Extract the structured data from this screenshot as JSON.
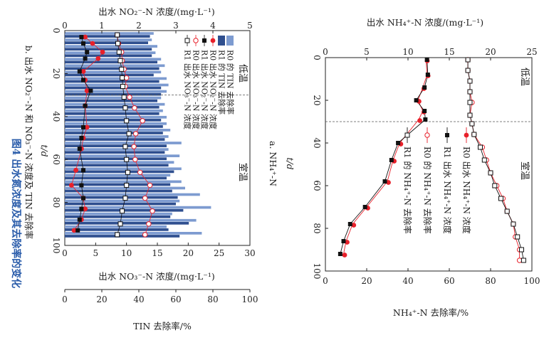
{
  "figure": {
    "caption": "图4  出水氮浓度及其去除率的变化",
    "caption_color": "#2a5caa"
  },
  "chart_data": [
    {
      "type": "bar+line+scatter",
      "subtitle": "b. 出水 NO₂⁻-N 和 NO₃⁻-N 浓度及 TIN 去除率",
      "t_label": "t/d",
      "no2_axis_label": "出水 NO₂⁻-N 浓度/(mg·L⁻¹)",
      "no3_axis_label": "出水 NO₃⁻-N 浓度/(mg·L⁻¹)",
      "tin_axis_label": "TIN 去除率/%",
      "t_range": [
        0,
        100
      ],
      "t_ticks": [
        0,
        20,
        40,
        60,
        80,
        100
      ],
      "no2_range": [
        0,
        5
      ],
      "no2_ticks": [
        0,
        1,
        2,
        3,
        4,
        5
      ],
      "no3_range": [
        0,
        30
      ],
      "no3_ticks": [
        0,
        5,
        10,
        15,
        20,
        25,
        30
      ],
      "tin_range": [
        0,
        100
      ],
      "tin_ticks": [
        0,
        20,
        40,
        60,
        80,
        100
      ],
      "divider_t": 30,
      "phase_labels": [
        "低温",
        "室温"
      ],
      "legend": [
        "R0 的 TIN 去除率",
        "R1 的 TIN 去除率",
        "R0 出水 NO₂⁻-N 浓度",
        "R1 出水 NO₂⁻-N 浓度",
        "R0 出水 NO₃⁻-N 浓度",
        "R1 出水 NO₃⁻-N 浓度"
      ],
      "t": [
        2,
        5,
        8,
        11,
        14,
        17,
        20,
        23,
        26,
        29,
        32,
        35,
        38,
        41,
        44,
        47,
        50,
        53,
        56,
        59,
        62,
        65,
        68,
        71,
        74,
        77,
        80,
        83,
        86,
        89,
        92,
        95
      ],
      "tin_R0": [
        48,
        47,
        50,
        49,
        52,
        54,
        52,
        55,
        56,
        55,
        52,
        54,
        53,
        55,
        55,
        57,
        56,
        63,
        56,
        62,
        59,
        63,
        57,
        63,
        65,
        73,
        62,
        79,
        58,
        71,
        55,
        74
      ],
      "tin_R1": [
        46,
        45,
        47,
        47,
        50,
        51,
        48,
        51,
        52,
        52,
        50,
        51,
        51,
        52,
        53,
        53,
        54,
        55,
        54,
        55,
        56,
        59,
        55,
        57,
        58,
        61,
        60,
        64,
        57,
        67,
        56,
        62
      ],
      "no2_R0_t": [
        3,
        6,
        10,
        13,
        19,
        23,
        28,
        35,
        45,
        50,
        55,
        65,
        72,
        78,
        83,
        88,
        93
      ],
      "no2_R0": [
        0.55,
        0.75,
        1.02,
        0.9,
        0.5,
        0.55,
        0.6,
        0.55,
        0.6,
        0.5,
        0.45,
        0.3,
        0.18,
        0.5,
        0.55,
        0.45,
        0.25
      ],
      "no2_R1_t": [
        3,
        6,
        10,
        13,
        19,
        23,
        28,
        35,
        45,
        50,
        55,
        65,
        72,
        78,
        83,
        88,
        93
      ],
      "no2_R1": [
        0.45,
        0.5,
        0.6,
        0.55,
        0.4,
        0.5,
        0.7,
        0.55,
        0.5,
        0.45,
        0.4,
        0.5,
        0.45,
        0.5,
        0.45,
        0.4,
        0.35
      ],
      "no3_R0_t": [
        2,
        6,
        10,
        14,
        18,
        22,
        26,
        31,
        36,
        42,
        48,
        54,
        60,
        66,
        72,
        78,
        84,
        90,
        95
      ],
      "no3_R0": [
        8.5,
        8.7,
        9.2,
        9.3,
        9.6,
        10.0,
        9.8,
        10.5,
        11.3,
        12.6,
        11.5,
        11.2,
        11.4,
        12.2,
        13.8,
        13.0,
        14.2,
        13.6,
        13.0
      ],
      "no3_R1_t": [
        2,
        6,
        10,
        14,
        18,
        22,
        26,
        31,
        36,
        42,
        48,
        54,
        60,
        66,
        72,
        78,
        84,
        90,
        95
      ],
      "no3_R1": [
        8.5,
        8.6,
        8.8,
        9.0,
        9.2,
        9.3,
        9.4,
        9.6,
        9.8,
        10.0,
        10.4,
        9.8,
        10.0,
        10.2,
        10.0,
        9.8,
        9.3,
        9.0,
        8.5
      ]
    },
    {
      "type": "line+scatter",
      "subtitle": "a. NH₄⁺-N",
      "t_label": "t/d",
      "conc_axis_label": "出水 NH₄⁺-N 浓度/(mg·L⁻¹)",
      "rate_axis_label": "NH₄⁺-N 去除率/%",
      "t_range": [
        0,
        100
      ],
      "t_ticks": [
        0,
        20,
        40,
        60,
        80,
        100
      ],
      "conc_range": [
        0,
        25
      ],
      "conc_ticks": [
        0,
        5,
        10,
        15,
        20,
        25
      ],
      "rate_range": [
        0,
        100
      ],
      "rate_ticks": [
        0,
        20,
        40,
        60,
        80,
        100
      ],
      "divider_t": 30,
      "phase_labels": [
        "低温",
        "室温"
      ],
      "legend": [
        "R0 出水 NH₄⁺-N 浓度",
        "R1 出水 NH₄⁺-N 浓度",
        "R0 的 NH₄⁺-N 去除率",
        "R1 的 NH₄⁺-N 去除率"
      ],
      "conc_R0_t": [
        1,
        8,
        14,
        20,
        25,
        29,
        40,
        48,
        58,
        70,
        78,
        86,
        92
      ],
      "conc_R0": [
        12.2,
        12.3,
        11.8,
        11.2,
        11.8,
        11.3,
        9.0,
        8.2,
        7.5,
        5.0,
        3.3,
        2.5,
        2.2
      ],
      "conc_R1_t": [
        1,
        8,
        14,
        20,
        25,
        29,
        40,
        48,
        58,
        70,
        78,
        86,
        92
      ],
      "conc_R1": [
        12.3,
        12.4,
        12.0,
        11.0,
        12.0,
        12.1,
        8.8,
        8.0,
        7.2,
        4.8,
        3.0,
        2.2,
        1.8
      ],
      "rate_R0_t": [
        1,
        6,
        11,
        16,
        21,
        27,
        31,
        36,
        42,
        48,
        54,
        60,
        66,
        72,
        78,
        84,
        90,
        95
      ],
      "rate_R0": [
        69,
        69,
        70,
        70,
        71,
        70,
        71,
        72,
        76,
        78,
        80,
        83,
        86,
        88,
        91,
        92,
        94,
        94
      ],
      "rate_R1_t": [
        1,
        6,
        11,
        16,
        21,
        27,
        31,
        36,
        42,
        48,
        54,
        60,
        66,
        72,
        78,
        84,
        90,
        95
      ],
      "rate_R1": [
        69,
        69,
        70,
        70,
        70,
        70,
        71,
        72,
        75,
        77,
        80,
        82,
        85,
        88,
        91,
        93,
        95,
        96
      ]
    }
  ]
}
